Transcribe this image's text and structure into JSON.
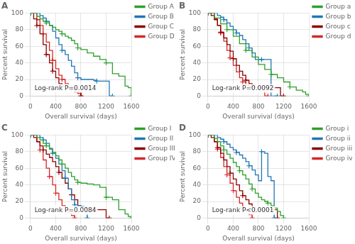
{
  "chart_data": [
    {
      "type": "line",
      "title": "A",
      "annotations": [
        "Log-rank P=0.0014"
      ],
      "xlabel": "Overall survival (days)",
      "ylabel": "Percent survival",
      "line_style": "step",
      "marker": "plus",
      "grid": true,
      "legend": "upper right",
      "xlim": [
        0,
        1600
      ],
      "ylim": [
        0,
        100
      ],
      "xticks": [
        0,
        400,
        800,
        1200,
        1600
      ],
      "yticks": [
        0,
        20,
        40,
        60,
        80,
        100
      ],
      "series": [
        {
          "name": "Group A",
          "color": "#2ca02c",
          "x": [
            0,
            100,
            150,
            200,
            250,
            300,
            350,
            400,
            450,
            500,
            550,
            600,
            650,
            700,
            750,
            800,
            900,
            1000,
            1100,
            1200,
            1300,
            1400,
            1500,
            1550,
            1600
          ],
          "values": [
            100,
            96,
            93,
            90,
            88,
            85,
            83,
            80,
            78,
            75,
            72,
            70,
            67,
            63,
            58,
            56,
            52,
            48,
            44,
            40,
            27,
            24,
            12,
            10,
            0
          ]
        },
        {
          "name": "Group B",
          "color": "#1f77b4",
          "x": [
            0,
            100,
            150,
            200,
            250,
            300,
            350,
            400,
            450,
            500,
            550,
            600,
            650,
            700,
            750,
            800,
            900,
            950,
            1000,
            1050,
            1100,
            1150,
            1200,
            1250,
            1300
          ],
          "values": [
            100,
            100,
            97,
            94,
            90,
            85,
            78,
            70,
            62,
            55,
            50,
            43,
            36,
            28,
            22,
            20,
            20,
            20,
            19,
            18,
            18,
            18,
            18,
            0,
            0
          ]
        },
        {
          "name": "Group C",
          "color": "#8B0000",
          "x": [
            0,
            50,
            100,
            150,
            200,
            250,
            300,
            350,
            400,
            450,
            500,
            600,
            700,
            800
          ],
          "values": [
            100,
            93,
            85,
            75,
            62,
            50,
            40,
            30,
            22,
            15,
            12,
            10,
            5,
            0
          ]
        },
        {
          "name": "Group D",
          "color": "#d62728",
          "x": [
            0,
            100,
            150,
            200,
            250,
            300,
            350,
            400,
            450,
            500,
            550,
            600,
            650,
            700,
            750,
            800
          ],
          "values": [
            100,
            92,
            85,
            75,
            65,
            55,
            43,
            33,
            25,
            20,
            15,
            12,
            8,
            5,
            3,
            0
          ]
        }
      ]
    },
    {
      "type": "line",
      "title": "B",
      "annotations": [
        "Log-rank P=0.0092"
      ],
      "xlabel": "Overall survival (days)",
      "ylabel": "Percent survival",
      "line_style": "step",
      "marker": "plus",
      "grid": true,
      "legend": "upper right",
      "xlim": [
        0,
        1600
      ],
      "ylim": [
        0,
        100
      ],
      "xticks": [
        0,
        400,
        800,
        1200,
        1600
      ],
      "yticks": [
        0,
        20,
        40,
        60,
        80,
        100
      ],
      "series": [
        {
          "name": "Group a",
          "color": "#2ca02c",
          "x": [
            0,
            100,
            200,
            300,
            400,
            500,
            600,
            700,
            800,
            900,
            1000,
            1100,
            1200,
            1300,
            1400,
            1500,
            1550,
            1600
          ],
          "values": [
            100,
            94,
            87,
            80,
            72,
            63,
            55,
            47,
            38,
            32,
            26,
            22,
            17,
            11,
            7,
            5,
            2,
            0
          ]
        },
        {
          "name": "Group b",
          "color": "#1f77b4",
          "x": [
            0,
            100,
            150,
            200,
            250,
            300,
            350,
            400,
            450,
            500,
            550,
            600,
            650,
            700,
            750,
            800,
            850,
            900,
            950,
            1000,
            1050,
            1100
          ],
          "values": [
            100,
            100,
            97,
            95,
            92,
            88,
            84,
            80,
            76,
            73,
            68,
            63,
            58,
            52,
            44,
            44,
            44,
            44,
            44,
            0,
            0,
            0
          ]
        },
        {
          "name": "Group c",
          "color": "#8B0000",
          "x": [
            0,
            50,
            100,
            150,
            200,
            250,
            300,
            350,
            400,
            450,
            500,
            550,
            600,
            650,
            700,
            750,
            800,
            900,
            1000,
            1100,
            1150,
            1200
          ],
          "values": [
            100,
            97,
            92,
            85,
            77,
            70,
            62,
            54,
            45,
            37,
            30,
            25,
            19,
            15,
            12,
            10,
            10,
            10,
            10,
            10,
            0,
            0
          ]
        },
        {
          "name": "Group d",
          "color": "#d62728",
          "x": [
            0,
            100,
            150,
            200,
            250,
            300,
            350,
            400,
            450,
            500,
            550,
            600,
            650,
            700,
            750,
            800,
            900,
            950
          ],
          "values": [
            100,
            93,
            85,
            76,
            66,
            55,
            46,
            37,
            29,
            22,
            17,
            13,
            12,
            10,
            10,
            10,
            0,
            0
          ]
        }
      ]
    },
    {
      "type": "line",
      "title": "C",
      "annotations": [
        "Log-rank P=0.0084"
      ],
      "xlabel": "Overall survival (days)",
      "ylabel": "Percent survival",
      "line_style": "step",
      "marker": "plus",
      "grid": true,
      "legend": "upper right",
      "xlim": [
        0,
        1600
      ],
      "ylim": [
        0,
        100
      ],
      "xticks": [
        0,
        400,
        800,
        1200,
        1600
      ],
      "yticks": [
        0,
        20,
        40,
        60,
        80,
        100
      ],
      "series": [
        {
          "name": "Group I",
          "color": "#2ca02c",
          "x": [
            0,
            100,
            150,
            200,
            250,
            300,
            350,
            400,
            450,
            500,
            550,
            600,
            650,
            700,
            750,
            800,
            900,
            1000,
            1100,
            1200,
            1300,
            1400,
            1500,
            1550,
            1600
          ],
          "values": [
            100,
            97,
            94,
            90,
            87,
            83,
            79,
            75,
            70,
            65,
            60,
            55,
            50,
            46,
            43,
            42,
            41,
            40,
            37,
            25,
            22,
            10,
            5,
            2,
            0
          ]
        },
        {
          "name": "Group II",
          "color": "#1f77b4",
          "x": [
            0,
            100,
            150,
            200,
            250,
            300,
            350,
            400,
            450,
            500,
            550,
            600,
            650,
            700,
            750,
            800,
            850,
            900
          ],
          "values": [
            100,
            100,
            97,
            94,
            90,
            84,
            78,
            72,
            65,
            57,
            48,
            35,
            22,
            16,
            15,
            14,
            13,
            0
          ]
        },
        {
          "name": "Group III",
          "color": "#8B0000",
          "x": [
            0,
            50,
            100,
            150,
            200,
            250,
            300,
            350,
            400,
            450,
            500,
            550,
            600,
            650,
            700,
            750,
            800,
            900,
            1000,
            1050,
            1100,
            1150,
            1200,
            1250
          ],
          "values": [
            100,
            97,
            92,
            87,
            82,
            77,
            73,
            68,
            62,
            55,
            48,
            42,
            35,
            28,
            22,
            15,
            12,
            11,
            10,
            10,
            10,
            10,
            0,
            0
          ]
        },
        {
          "name": "Group IV",
          "color": "#d62728",
          "x": [
            0,
            100,
            150,
            200,
            250,
            300,
            350,
            400,
            450,
            500,
            550,
            600,
            650,
            700
          ],
          "values": [
            100,
            92,
            82,
            70,
            60,
            50,
            40,
            30,
            22,
            15,
            10,
            6,
            3,
            0
          ]
        }
      ]
    },
    {
      "type": "line",
      "title": "D",
      "annotations": [
        "Log-rank P<0.0001"
      ],
      "xlabel": "Overall survival (days)",
      "ylabel": "Percent survival",
      "line_style": "step",
      "marker": "plus",
      "grid": true,
      "legend": "upper right",
      "xlim": [
        0,
        1600
      ],
      "ylim": [
        0,
        100
      ],
      "xticks": [
        0,
        400,
        800,
        1200,
        1600
      ],
      "yticks": [
        0,
        20,
        40,
        60,
        80,
        100
      ],
      "series": [
        {
          "name": "Group i",
          "color": "#2ca02c",
          "x": [
            0,
            100,
            150,
            200,
            250,
            300,
            350,
            400,
            450,
            500,
            550,
            600,
            650,
            700,
            750,
            800,
            850,
            900,
            950,
            1000,
            1050,
            1100,
            1150,
            1200
          ],
          "values": [
            100,
            96,
            92,
            87,
            82,
            77,
            72,
            67,
            62,
            57,
            52,
            47,
            41,
            35,
            30,
            25,
            22,
            20,
            18,
            15,
            12,
            8,
            3,
            0
          ]
        },
        {
          "name": "Group ii",
          "color": "#1f77b4",
          "x": [
            0,
            100,
            150,
            200,
            250,
            300,
            350,
            400,
            450,
            500,
            550,
            600,
            650,
            700,
            750,
            800,
            850,
            900,
            950,
            1000,
            1050
          ],
          "values": [
            100,
            100,
            97,
            95,
            92,
            89,
            85,
            82,
            79,
            76,
            72,
            68,
            63,
            58,
            52,
            45,
            80,
            78,
            50,
            45,
            0
          ]
        },
        {
          "name": "Group iii",
          "color": "#8B0000",
          "x": [
            0,
            50,
            100,
            150,
            200,
            250,
            300,
            350,
            400,
            450,
            500,
            550,
            600,
            650,
            700,
            750,
            800,
            900,
            1000,
            1100
          ],
          "values": [
            100,
            97,
            92,
            85,
            78,
            70,
            62,
            54,
            47,
            40,
            33,
            27,
            22,
            17,
            13,
            10,
            10,
            10,
            10,
            0
          ]
        },
        {
          "name": "Group iv",
          "color": "#d62728",
          "x": [
            0,
            100,
            150,
            200,
            250,
            300,
            350,
            400,
            450,
            500,
            550,
            600,
            650,
            700
          ],
          "values": [
            100,
            92,
            83,
            73,
            62,
            52,
            42,
            33,
            25,
            18,
            12,
            8,
            4,
            0
          ]
        }
      ]
    }
  ]
}
